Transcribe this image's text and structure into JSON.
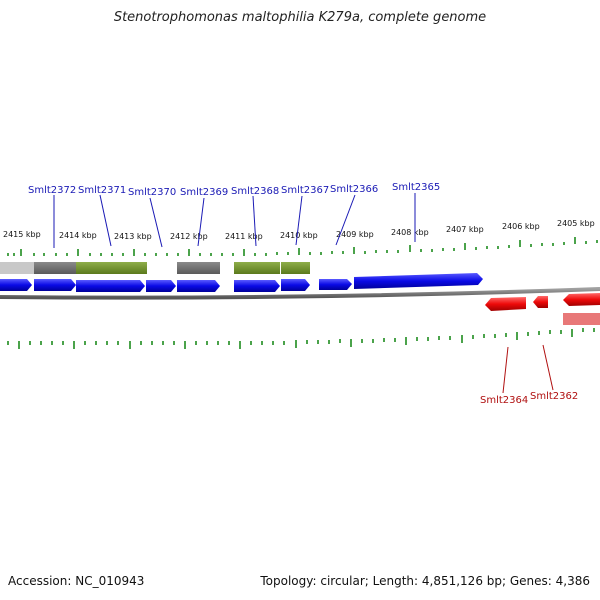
{
  "title": "Stenotrophomonas maltophilia K279a, complete genome",
  "accession": "Accession: NC_010943",
  "summary": "Topology: circular; Length: 4,851,126 bp; Genes: 4,386",
  "kbp_labels": [
    "2415 kbp",
    "2414 kbp",
    "2413 kbp",
    "2412 kbp",
    "2411 kbp",
    "2410 kbp",
    "2409 kbp",
    "2408 kbp",
    "2407 kbp",
    "2406 kbp",
    "2405 kbp"
  ],
  "forward_gene_labels": [
    "Smlt2372",
    "Smlt2371",
    "Smlt2370",
    "Smlt2369",
    "Smlt2368",
    "Smlt2367",
    "Smlt2366",
    "Smlt2365"
  ],
  "reverse_gene_labels": [
    "Smlt2364",
    "Smlt2362"
  ],
  "colors": {
    "forward_gene": "#0a0ae6",
    "reverse_gene": "#ee0a0a",
    "reverse_gene_light": "#e87878",
    "cog_green": "#6b8e23",
    "cog_gray": "#707070",
    "cog_lightgray": "#c0c0c0",
    "tick_green": "#1e8c1e",
    "backbone": "#808080"
  }
}
